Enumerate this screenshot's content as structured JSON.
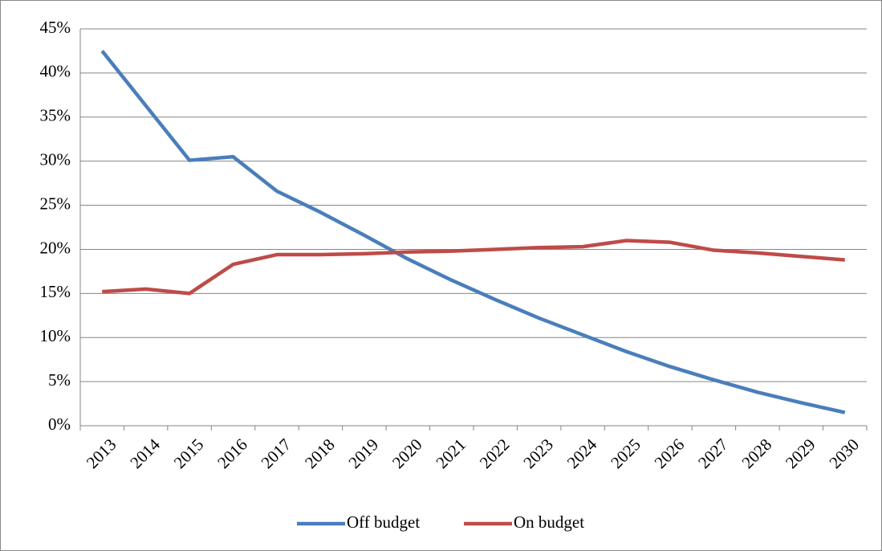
{
  "chart_data": {
    "type": "line",
    "categories": [
      "2013",
      "2014",
      "2015",
      "2016",
      "2017",
      "2018",
      "2019",
      "2020",
      "2021",
      "2022",
      "2023",
      "2024",
      "2025",
      "2026",
      "2027",
      "2028",
      "2029",
      "2030"
    ],
    "series": [
      {
        "name": "Off budget",
        "color": "#4a7ebb",
        "values": [
          42.5,
          36.3,
          30.1,
          30.5,
          26.6,
          24.2,
          21.6,
          18.9,
          16.5,
          14.3,
          12.2,
          10.3,
          8.4,
          6.7,
          5.2,
          3.8,
          2.6,
          1.5
        ]
      },
      {
        "name": "On budget",
        "color": "#be4b48",
        "values": [
          15.2,
          15.5,
          15.0,
          18.3,
          19.4,
          19.4,
          19.5,
          19.7,
          19.8,
          20.0,
          20.2,
          20.3,
          21.0,
          20.8,
          19.9,
          19.6,
          19.2,
          18.8
        ]
      }
    ],
    "ylim": [
      0,
      45
    ],
    "yticks": [
      {
        "value": 0,
        "label": "0%"
      },
      {
        "value": 5,
        "label": "5%"
      },
      {
        "value": 10,
        "label": "10%"
      },
      {
        "value": 15,
        "label": "15%"
      },
      {
        "value": 20,
        "label": "20%"
      },
      {
        "value": 25,
        "label": "25%"
      },
      {
        "value": 30,
        "label": "30%"
      },
      {
        "value": 35,
        "label": "35%"
      },
      {
        "value": 40,
        "label": "40%"
      },
      {
        "value": 45,
        "label": "45%"
      }
    ],
    "grid": true,
    "legend": "bottom"
  }
}
